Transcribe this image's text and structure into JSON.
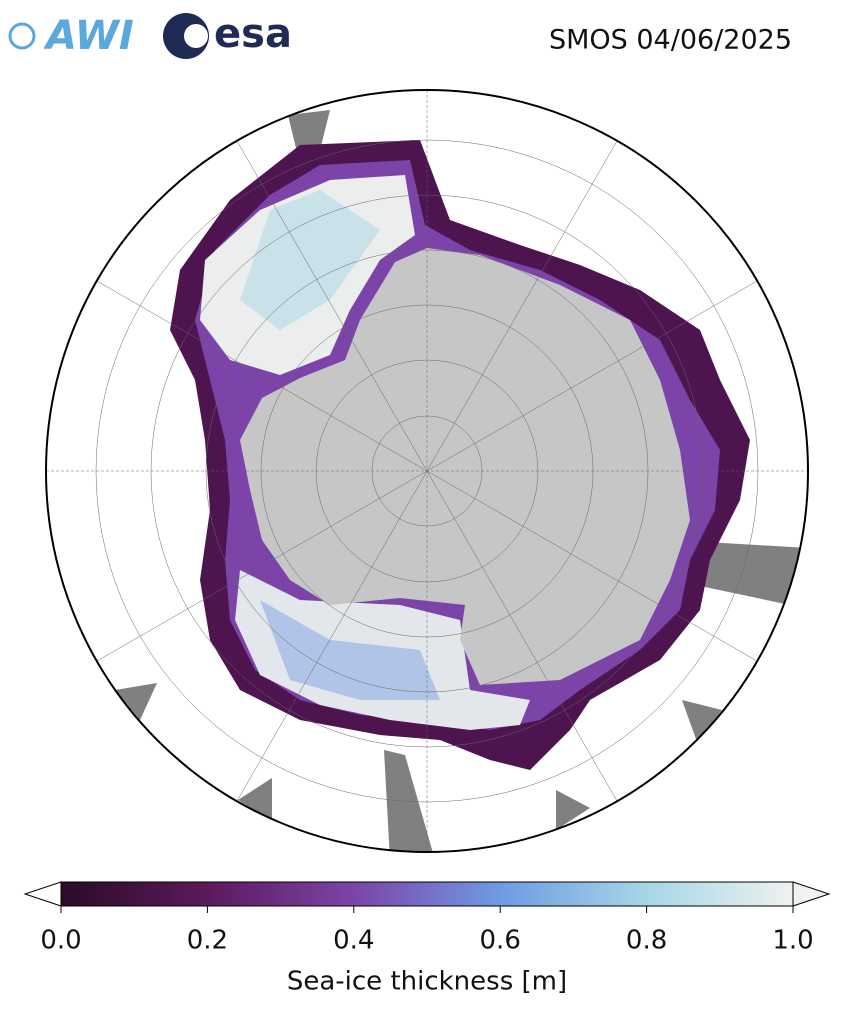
{
  "header": {
    "logos": [
      "AWI",
      "esa"
    ],
    "title": "SMOS 04/06/2025"
  },
  "colorbar": {
    "label": "Sea-ice thickness [m]",
    "lim": [
      0,
      1
    ],
    "ticks": [
      {
        "value": 0,
        "label": "0.0"
      },
      0.2,
      0.4,
      0.6,
      0.8,
      {
        "value": 1,
        "label": "1.0"
      }
    ],
    "colors": [
      "#2b0b26",
      "#5b1a5c",
      "#7c44a8",
      "#6f9be3",
      "#a6d6e6",
      "#eef2f0"
    ]
  }
}
